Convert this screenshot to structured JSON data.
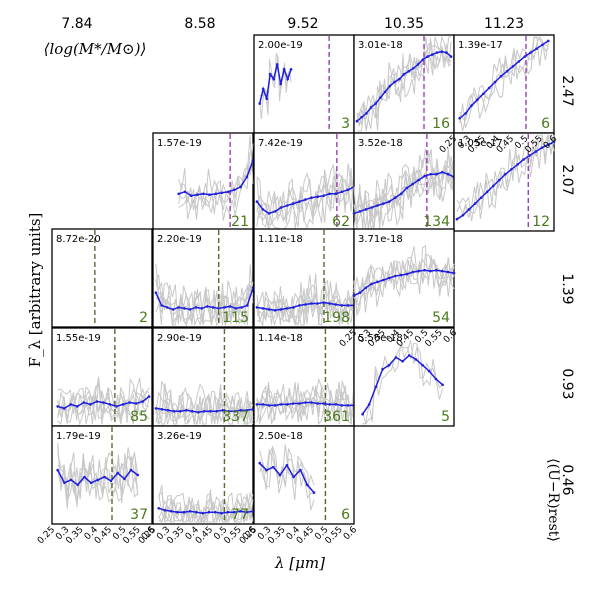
{
  "chart_data": {
    "type": "line",
    "title": "",
    "xlabel": "λ [μm]",
    "ylabel": "F_λ [arbitrary units]",
    "xlim": [
      0.25,
      0.6
    ],
    "x_ticks": [
      "0.25",
      "0.3",
      "0.35",
      "0.4",
      "0.45",
      "0.5",
      "0.55",
      "0.6"
    ],
    "mass_header": "⟨log(M*/M⊙)⟩",
    "color_header": "⟨(U−R)rest⟩",
    "mass_bins": [
      "7.84",
      "8.58",
      "9.52",
      "10.35",
      "11.23"
    ],
    "color_bins": [
      "2.47",
      "2.07",
      "1.39",
      "0.93",
      "0.46"
    ],
    "colors": {
      "median": "#1f1fdd",
      "individual": "#c8c8c8",
      "count": "#4a7a1a",
      "break_purple": "#9b3fb0",
      "break_olive": "#556b2f"
    },
    "panels": [
      {
        "row": 0,
        "col": 2,
        "norm": "2.00e-19",
        "count": "3",
        "break": 0.513,
        "break_color": "purple",
        "wmin": 0.27,
        "wmax": 0.38,
        "series": [
          0.3,
          0.45,
          0.35,
          0.6,
          0.55,
          0.7,
          0.5,
          0.65,
          0.55,
          0.65
        ]
      },
      {
        "row": 0,
        "col": 3,
        "norm": "3.01e-18",
        "count": "16",
        "break": 0.495,
        "break_color": "purple",
        "wmin": 0.26,
        "wmax": 0.59,
        "series": [
          0.12,
          0.16,
          0.2,
          0.26,
          0.3,
          0.36,
          0.42,
          0.48,
          0.52,
          0.55,
          0.6,
          0.63,
          0.66,
          0.7,
          0.75,
          0.78,
          0.8,
          0.82,
          0.83,
          0.82,
          0.78
        ]
      },
      {
        "row": 0,
        "col": 4,
        "norm": "1.39e-17",
        "count": "6",
        "break": 0.502,
        "break_color": "purple",
        "wmin": 0.27,
        "wmax": 0.58,
        "series": [
          0.15,
          0.2,
          0.28,
          0.34,
          0.4,
          0.46,
          0.52,
          0.58,
          0.63,
          0.68,
          0.73,
          0.78,
          0.82,
          0.86,
          0.9,
          0.94
        ]
      },
      {
        "row": 1,
        "col": 1,
        "norm": "1.57e-19",
        "count": "21",
        "break": 0.52,
        "break_color": "purple",
        "wmin": 0.34,
        "wmax": 0.6,
        "series": [
          0.38,
          0.4,
          0.36,
          0.37,
          0.38,
          0.37,
          0.38,
          0.39,
          0.4,
          0.42,
          0.45,
          0.55,
          0.72
        ]
      },
      {
        "row": 1,
        "col": 2,
        "norm": "7.42e-19",
        "count": "62",
        "break": 0.54,
        "break_color": "purple",
        "wmin": 0.26,
        "wmax": 0.6,
        "series": [
          0.3,
          0.22,
          0.18,
          0.2,
          0.24,
          0.26,
          0.28,
          0.3,
          0.32,
          0.34,
          0.35,
          0.36,
          0.38,
          0.38,
          0.4,
          0.42,
          0.45
        ]
      },
      {
        "row": 1,
        "col": 3,
        "norm": "3.52e-18",
        "count": "134",
        "break": 0.505,
        "break_color": "purple",
        "wmin": 0.25,
        "wmax": 0.6,
        "series": [
          0.18,
          0.2,
          0.22,
          0.24,
          0.26,
          0.28,
          0.3,
          0.34,
          0.38,
          0.44,
          0.48,
          0.52,
          0.56,
          0.58,
          0.58,
          0.6,
          0.58,
          0.55
        ]
      },
      {
        "row": 1,
        "col": 4,
        "norm": "1.05e-17",
        "count": "12",
        "break": 0.51,
        "break_color": "purple",
        "wmin": 0.26,
        "wmax": 0.6,
        "series": [
          0.12,
          0.16,
          0.22,
          0.28,
          0.34,
          0.4,
          0.46,
          0.52,
          0.58,
          0.63,
          0.68,
          0.73,
          0.77,
          0.81,
          0.85,
          0.88,
          0.91
        ]
      },
      {
        "row": 2,
        "col": 0,
        "norm": "8.72e-20",
        "count": "2",
        "break": 0.4,
        "break_color": "olive",
        "wmin": null,
        "wmax": null,
        "series": []
      },
      {
        "row": 2,
        "col": 1,
        "norm": "2.20e-19",
        "count": "115",
        "break": 0.48,
        "break_color": "olive",
        "wmin": 0.26,
        "wmax": 0.6,
        "series": [
          0.35,
          0.22,
          0.2,
          0.18,
          0.2,
          0.19,
          0.18,
          0.2,
          0.19,
          0.21,
          0.2,
          0.19,
          0.2,
          0.21,
          0.19,
          0.2,
          0.22,
          0.4
        ]
      },
      {
        "row": 2,
        "col": 2,
        "norm": "1.11e-18",
        "count": "198",
        "break": 0.495,
        "break_color": "olive",
        "wmin": 0.26,
        "wmax": 0.6,
        "series": [
          0.2,
          0.19,
          0.18,
          0.17,
          0.18,
          0.19,
          0.2,
          0.22,
          0.23,
          0.24,
          0.24,
          0.25,
          0.24,
          0.23,
          0.22,
          0.22,
          0.22
        ]
      },
      {
        "row": 2,
        "col": 3,
        "norm": "3.71e-18",
        "count": "54",
        "break": null,
        "break_color": "",
        "wmin": 0.25,
        "wmax": 0.6,
        "series": [
          0.32,
          0.35,
          0.4,
          0.44,
          0.46,
          0.48,
          0.5,
          0.52,
          0.53,
          0.54,
          0.56,
          0.57,
          0.58,
          0.57,
          0.58,
          0.57,
          0.56,
          0.55
        ]
      },
      {
        "row": 3,
        "col": 0,
        "norm": "1.55e-19",
        "count": "85",
        "break": 0.47,
        "break_color": "olive",
        "wmin": 0.27,
        "wmax": 0.59,
        "series": [
          0.2,
          0.18,
          0.22,
          0.2,
          0.24,
          0.22,
          0.25,
          0.24,
          0.22,
          0.2,
          0.22,
          0.24,
          0.23,
          0.25,
          0.3
        ]
      },
      {
        "row": 3,
        "col": 1,
        "norm": "2.90e-19",
        "count": "337",
        "break": 0.5,
        "break_color": "olive",
        "wmin": 0.26,
        "wmax": 0.6,
        "series": [
          0.18,
          0.17,
          0.16,
          0.15,
          0.15,
          0.16,
          0.15,
          0.14,
          0.15,
          0.15,
          0.15,
          0.16,
          0.15,
          0.15,
          0.16,
          0.16,
          0.17
        ]
      },
      {
        "row": 3,
        "col": 2,
        "norm": "1.14e-18",
        "count": "361",
        "break": 0.5,
        "break_color": "olive",
        "wmin": 0.26,
        "wmax": 0.6,
        "series": [
          0.22,
          0.22,
          0.21,
          0.21,
          0.22,
          0.22,
          0.23,
          0.23,
          0.24,
          0.24,
          0.23,
          0.23,
          0.22,
          0.22,
          0.21,
          0.21,
          0.21
        ]
      },
      {
        "row": 3,
        "col": 3,
        "norm": "5.56e-18",
        "count": "5",
        "break": null,
        "break_color": "",
        "wmin": 0.28,
        "wmax": 0.56,
        "series": [
          0.12,
          0.22,
          0.4,
          0.58,
          0.62,
          0.7,
          0.66,
          0.72,
          0.68,
          0.62,
          0.56,
          0.48,
          0.42
        ]
      },
      {
        "row": 4,
        "col": 0,
        "norm": "1.79e-19",
        "count": "37",
        "break": 0.46,
        "break_color": "olive",
        "wmin": 0.27,
        "wmax": 0.55,
        "series": [
          0.55,
          0.42,
          0.45,
          0.4,
          0.48,
          0.42,
          0.45,
          0.48,
          0.44,
          0.52,
          0.46,
          0.55,
          0.5
        ]
      },
      {
        "row": 4,
        "col": 1,
        "norm": "3.26e-19",
        "count": "77",
        "break": 0.5,
        "break_color": "olive",
        "wmin": 0.27,
        "wmax": 0.6,
        "series": [
          0.16,
          0.14,
          0.13,
          0.12,
          0.12,
          0.13,
          0.12,
          0.11,
          0.12,
          0.12,
          0.11,
          0.12,
          0.12,
          0.13,
          0.12,
          0.13
        ]
      },
      {
        "row": 4,
        "col": 2,
        "norm": "2.50e-18",
        "count": "6",
        "break": 0.5,
        "break_color": "olive",
        "wmin": 0.27,
        "wmax": 0.46,
        "series": [
          0.62,
          0.55,
          0.58,
          0.5,
          0.6,
          0.48,
          0.55,
          0.4,
          0.32
        ]
      }
    ]
  }
}
